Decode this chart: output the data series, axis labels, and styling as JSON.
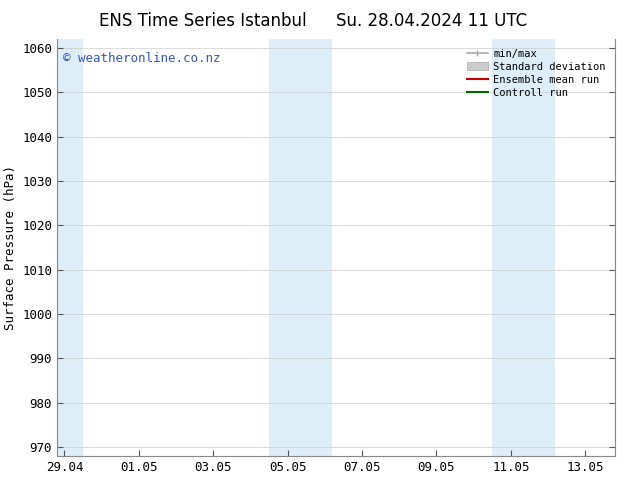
{
  "title1": "ENS Time Series Istanbul",
  "title2": "Su. 28.04.2024 11 UTC",
  "ylabel": "Surface Pressure (hPa)",
  "ylim": [
    968,
    1062
  ],
  "yticks": [
    970,
    980,
    990,
    1000,
    1010,
    1020,
    1030,
    1040,
    1050,
    1060
  ],
  "xlim_start": -0.2,
  "xlim_end": 14.8,
  "xtick_labels": [
    "29.04",
    "01.05",
    "03.05",
    "05.05",
    "07.05",
    "09.05",
    "11.05",
    "13.05"
  ],
  "xtick_positions": [
    0,
    2,
    4,
    6,
    8,
    10,
    12,
    14
  ],
  "shaded_bands": [
    {
      "x_start": -0.2,
      "x_end": 0.5
    },
    {
      "x_start": 5.5,
      "x_end": 6.5
    },
    {
      "x_start": 6.5,
      "x_end": 7.2
    },
    {
      "x_start": 11.5,
      "x_end": 12.2
    },
    {
      "x_start": 12.2,
      "x_end": 13.2
    }
  ],
  "shade_color": "#ddeef8",
  "watermark": "© weatheronline.co.nz",
  "watermark_color": "#3355bb",
  "watermark_fontsize": 9,
  "legend_labels": [
    "min/max",
    "Standard deviation",
    "Ensemble mean run",
    "Controll run"
  ],
  "legend_gray": "#aaaaaa",
  "legend_lightgray": "#cccccc",
  "legend_red": "#cc0000",
  "legend_green": "#006600",
  "bg_color": "#ffffff",
  "title_fontsize": 12,
  "tick_fontsize": 9,
  "ylabel_fontsize": 9
}
